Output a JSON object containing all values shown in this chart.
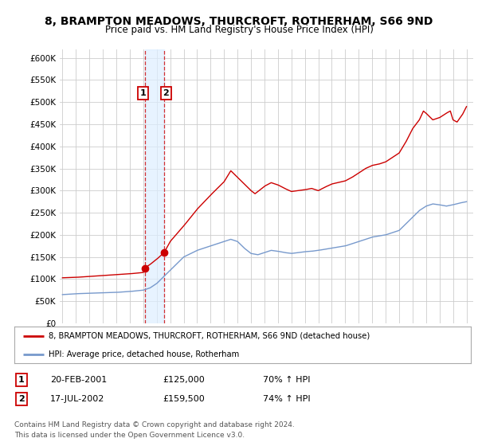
{
  "title": "8, BRAMPTON MEADOWS, THURCROFT, ROTHERHAM, S66 9ND",
  "subtitle": "Price paid vs. HM Land Registry's House Price Index (HPI)",
  "ylim": [
    0,
    620000
  ],
  "yticks": [
    0,
    50000,
    100000,
    150000,
    200000,
    250000,
    300000,
    350000,
    400000,
    450000,
    500000,
    550000,
    600000
  ],
  "ytick_labels": [
    "£0",
    "£50K",
    "£100K",
    "£150K",
    "£200K",
    "£250K",
    "£300K",
    "£350K",
    "£400K",
    "£450K",
    "£500K",
    "£550K",
    "£600K"
  ],
  "house_color": "#cc0000",
  "hpi_color": "#7799cc",
  "transaction1_date": 2001.13,
  "transaction1_price": 125000,
  "transaction2_date": 2002.54,
  "transaction2_price": 159500,
  "legend_house": "8, BRAMPTON MEADOWS, THURCROFT, ROTHERHAM, S66 9ND (detached house)",
  "legend_hpi": "HPI: Average price, detached house, Rotherham",
  "table_row1": [
    "1",
    "20-FEB-2001",
    "£125,000",
    "70% ↑ HPI"
  ],
  "table_row2": [
    "2",
    "17-JUL-2002",
    "£159,500",
    "74% ↑ HPI"
  ],
  "footnote1": "Contains HM Land Registry data © Crown copyright and database right 2024.",
  "footnote2": "This data is licensed under the Open Government Licence v3.0.",
  "bg_color": "#ffffff",
  "grid_color": "#cccccc",
  "xmin": 1994.8,
  "xmax": 2025.5
}
